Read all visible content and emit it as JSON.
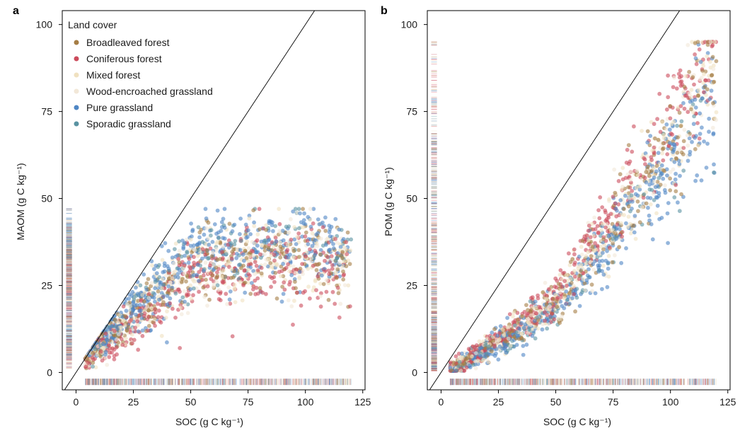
{
  "colors": {
    "broadleaved_forest": "#a57d45",
    "coniferous_forest": "#cc4b5c",
    "mixed_forest": "#f0e1c0",
    "wood_encroached_grassland": "#f2e8d8",
    "pure_grassland": "#4f86c4",
    "sporadic_grassland": "#5a93a2",
    "identity_line": "#000000",
    "frame": "#000000"
  },
  "legend": {
    "title": "Land cover",
    "position": "top-left (panel a)",
    "items": [
      {
        "label": "Broadleaved forest",
        "color": "#a57d45"
      },
      {
        "label": "Coniferous forest",
        "color": "#cc4b5c"
      },
      {
        "label": "Mixed forest",
        "color": "#f0e1c0"
      },
      {
        "label": "Wood-encroached grassland",
        "color": "#f2e8d8"
      },
      {
        "label": "Pure grassland",
        "color": "#4f86c4"
      },
      {
        "label": "Sporadic grassland",
        "color": "#5a93a2"
      }
    ]
  },
  "chart_data": [
    {
      "panel": "a",
      "type": "scatter",
      "xlabel": "SOC (g C kg⁻¹)",
      "ylabel": "MAOM (g C kg⁻¹)",
      "xlim": [
        -6,
        126
      ],
      "ylim": [
        -5,
        104
      ],
      "xticks": [
        0,
        25,
        50,
        75,
        100,
        125
      ],
      "yticks": [
        0,
        25,
        50,
        75,
        100
      ],
      "xtick_labels": [
        "0",
        "25",
        "50",
        "75",
        "100",
        "125"
      ],
      "ytick_labels": [
        "0",
        "25",
        "50",
        "75",
        "100"
      ],
      "reference_line": "1:1",
      "grid": false,
      "rug": "x and y marginal rugs",
      "soc_range": [
        4,
        120
      ],
      "y_range": [
        3,
        47
      ],
      "trend": [
        {
          "x": 5,
          "y": 5
        },
        {
          "x": 25,
          "y": 16
        },
        {
          "x": 50,
          "y": 30
        },
        {
          "x": 75,
          "y": 33
        },
        {
          "x": 100,
          "y": 33
        },
        {
          "x": 120,
          "y": 32
        }
      ]
    },
    {
      "panel": "b",
      "type": "scatter",
      "xlabel": "SOC (g C kg⁻¹)",
      "ylabel": "POM (g C kg⁻¹)",
      "xlim": [
        -6,
        126
      ],
      "ylim": [
        -5,
        104
      ],
      "xticks": [
        0,
        25,
        50,
        75,
        100,
        125
      ],
      "yticks": [
        0,
        25,
        50,
        75,
        100
      ],
      "xtick_labels": [
        "0",
        "25",
        "50",
        "75",
        "100",
        "125"
      ],
      "ytick_labels": [
        "0",
        "25",
        "50",
        "75",
        "100"
      ],
      "reference_line": "1:1",
      "grid": false,
      "rug": "x and y marginal rugs",
      "soc_range": [
        4,
        120
      ],
      "y_range": [
        0,
        95
      ],
      "trend": [
        {
          "x": 5,
          "y": 1
        },
        {
          "x": 25,
          "y": 9
        },
        {
          "x": 50,
          "y": 20
        },
        {
          "x": 75,
          "y": 42
        },
        {
          "x": 100,
          "y": 67
        },
        {
          "x": 120,
          "y": 87
        }
      ]
    }
  ]
}
